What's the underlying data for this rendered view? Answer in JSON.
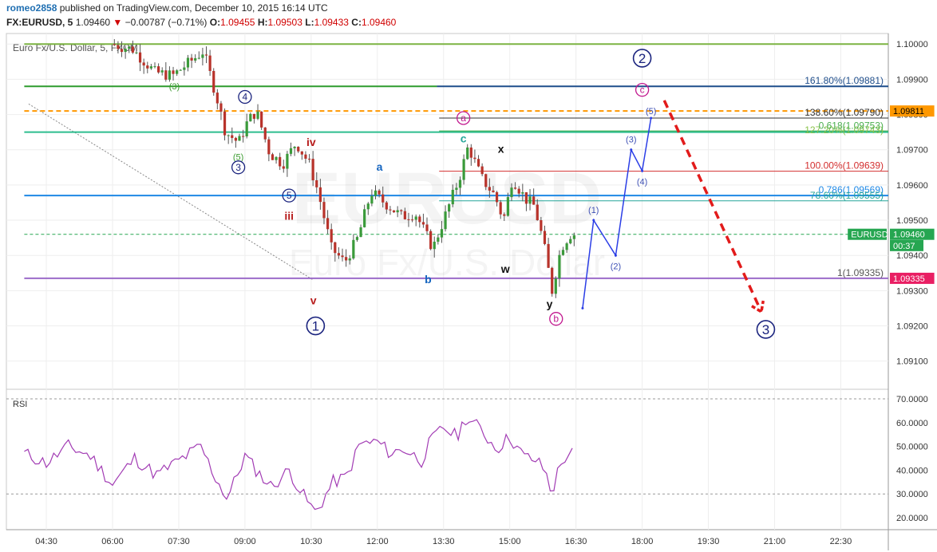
{
  "header": {
    "author": "romeo2858",
    "published_text": "published on TradingView.com, December 10, 2015 16:14 UTC",
    "symbol": "FX:EURUSD, 5",
    "last": "1.09460",
    "arrow": "▼",
    "change": "−0.00787 (−0.71%)",
    "o_label": "O:",
    "o": "1.09455",
    "h_label": "H:",
    "h": "1.09503",
    "l_label": "L:",
    "l": "1.09433",
    "c_label": "C:",
    "c": "1.09460"
  },
  "chart_data": {
    "type": "candlestick",
    "title": "Euro Fx/U.S. Dollar, 5, FXCM",
    "watermark_symbol": "EURUSD",
    "watermark_name": "Euro Fx/U.S. Dollar",
    "price_axis": {
      "ylim": [
        1.0902,
        1.1003
      ],
      "ticks": [
        "1.10000",
        "1.09900",
        "1.09800",
        "1.09700",
        "1.09600",
        "1.09500",
        "1.09400",
        "1.09300",
        "1.09200",
        "1.09100"
      ]
    },
    "time_axis": {
      "ticks": [
        {
          "t": 4.5,
          "label": "04:30"
        },
        {
          "t": 6,
          "label": "06:00"
        },
        {
          "t": 7.5,
          "label": "07:30"
        },
        {
          "t": 9,
          "label": "09:00"
        },
        {
          "t": 10.5,
          "label": "10:30"
        },
        {
          "t": 12,
          "label": "12:00"
        },
        {
          "t": 13.5,
          "label": "13:30"
        },
        {
          "t": 15,
          "label": "15:00"
        },
        {
          "t": 16.5,
          "label": "16:30"
        },
        {
          "t": 18,
          "label": "18:00"
        },
        {
          "t": 19.5,
          "label": "19:30"
        },
        {
          "t": 21,
          "label": "21:00"
        },
        {
          "t": 22.5,
          "label": "22:30"
        }
      ]
    },
    "price_anchors": [
      [
        6.0,
        1.1
      ],
      [
        6.5,
        1.09985
      ],
      [
        7.0,
        1.0992
      ],
      [
        7.4,
        1.0991
      ],
      [
        7.8,
        1.0995
      ],
      [
        8.1,
        1.0998
      ],
      [
        8.4,
        1.0985
      ],
      [
        8.6,
        1.0975
      ],
      [
        8.9,
        1.0972
      ],
      [
        9.1,
        1.0978
      ],
      [
        9.3,
        1.0981
      ],
      [
        9.6,
        1.0969
      ],
      [
        9.9,
        1.0966
      ],
      [
        10.2,
        1.0972
      ],
      [
        10.5,
        1.0966
      ],
      [
        10.7,
        1.0958
      ],
      [
        11.0,
        1.0942
      ],
      [
        11.3,
        1.0938
      ],
      [
        11.6,
        1.0945
      ],
      [
        11.9,
        1.0958
      ],
      [
        12.2,
        1.0955
      ],
      [
        12.6,
        1.0951
      ],
      [
        12.9,
        1.0952
      ],
      [
        13.1,
        1.0947
      ],
      [
        13.3,
        1.0942
      ],
      [
        13.6,
        1.0952
      ],
      [
        13.9,
        1.0962
      ],
      [
        14.1,
        1.0971
      ],
      [
        14.4,
        1.0962
      ],
      [
        14.7,
        1.0957
      ],
      [
        14.9,
        1.095
      ],
      [
        15.1,
        1.0962
      ],
      [
        15.4,
        1.0956
      ],
      [
        15.6,
        1.0954
      ],
      [
        15.8,
        1.0944
      ],
      [
        16.0,
        1.093
      ],
      [
        16.2,
        1.0942
      ],
      [
        16.4,
        1.0946
      ]
    ],
    "candles_to": 16.45,
    "horizontal_lines": [
      {
        "price": 1.1,
        "color": "#7cb342",
        "width": 2,
        "dash": "",
        "from": 4.0
      },
      {
        "price": 1.0988,
        "color": "#2e9c2e",
        "width": 2,
        "dash": "",
        "from": 4.0,
        "to": 13.35
      },
      {
        "price": 1.0988,
        "color": "#1f4e8c",
        "width": 2,
        "dash": "",
        "from": 13.35
      },
      {
        "price": 1.0981,
        "color": "#ff9800",
        "width": 2,
        "dash": "6,4",
        "from": 4.0
      },
      {
        "price": 1.0979,
        "color": "#333333",
        "width": 1,
        "dash": "",
        "from": 13.4
      },
      {
        "price": 1.09753,
        "color": "#4caf50",
        "width": 1.5,
        "dash": "",
        "from": 13.4
      },
      {
        "price": 1.0975,
        "color": "#2dbd8f",
        "width": 2,
        "dash": "",
        "from": 4.0
      },
      {
        "price": 1.09639,
        "color": "#d32f2f",
        "width": 1,
        "dash": "",
        "from": 13.4
      },
      {
        "price": 1.0957,
        "color": "#1e88e5",
        "width": 2,
        "dash": "",
        "from": 4.0
      },
      {
        "price": 1.09555,
        "color": "#26a69a",
        "width": 1,
        "dash": "",
        "from": 13.4
      },
      {
        "price": 1.0946,
        "color": "#26a651",
        "width": 1,
        "dash": "4,3",
        "from": 4.0
      },
      {
        "price": 1.09335,
        "color": "#9c6bc9",
        "width": 2,
        "dash": "",
        "from": 4.0
      }
    ],
    "fib_labels": [
      {
        "text": "161.80%(1.09881)",
        "price": 1.0988,
        "color": "#1f4e8c"
      },
      {
        "text": "138.60%(1.09790)",
        "price": 1.0979,
        "color": "#333333"
      },
      {
        "text": "127.20%(1.09743)",
        "price": 1.0974,
        "color": "#8bc34a"
      },
      {
        "text": "0.618(1.09753)",
        "price": 1.09753,
        "color": "#4caf50"
      },
      {
        "text": "100.00%(1.09639)",
        "price": 1.09639,
        "color": "#d32f2f"
      },
      {
        "text": "0.786(1.09569)",
        "price": 1.0957,
        "color": "#1e88e5"
      },
      {
        "text": "78.60%(1.09555)",
        "price": 1.09555,
        "color": "#26a69a"
      },
      {
        "text": "1(1.09335)",
        "price": 1.09335,
        "color": "#555555"
      }
    ],
    "price_tags": [
      {
        "text": "1.09811",
        "price": 1.0981,
        "bg": "#ff9800",
        "fg": "#000000"
      },
      {
        "text": "EURUSD",
        "price": 1.0946,
        "bg": "#26a651",
        "fg": "#ffffff",
        "left": true
      },
      {
        "text": "1.09460",
        "price": 1.0946,
        "bg": "#26a651",
        "fg": "#ffffff"
      },
      {
        "text": "00:37",
        "price": 1.09428,
        "bg": "#26a651",
        "fg": "#ffffff"
      },
      {
        "text": "1.09335",
        "price": 1.09335,
        "bg": "#e91e63",
        "fg": "#ffffff"
      }
    ],
    "trendline": [
      [
        4.1,
        1.0983
      ],
      [
        10.55,
        1.0933
      ]
    ],
    "projection": [
      [
        16.65,
        1.0925
      ],
      [
        16.9,
        1.095
      ],
      [
        17.4,
        1.094
      ],
      [
        17.75,
        1.097
      ],
      [
        18.0,
        1.0964
      ],
      [
        18.2,
        1.0979
      ]
    ],
    "forecast_arrow": [
      [
        18.5,
        1.0984
      ],
      [
        20.7,
        1.0924
      ]
    ],
    "wave_labels": [
      {
        "text": "(3)",
        "t": 7.4,
        "price": 1.0988,
        "color": "#3b9b2f",
        "shape": "none"
      },
      {
        "text": "4",
        "t": 9.0,
        "price": 1.0985,
        "color": "#1a237e",
        "shape": "circle"
      },
      {
        "text": "(5)",
        "t": 8.85,
        "price": 1.0968,
        "color": "#3b9b2f",
        "shape": "none"
      },
      {
        "text": "3",
        "t": 8.85,
        "price": 1.0965,
        "color": "#1a237e",
        "shape": "circle"
      },
      {
        "text": "iv",
        "t": 10.5,
        "price": 1.0972,
        "color": "#b71c1c",
        "shape": "none",
        "bold": true
      },
      {
        "text": "5",
        "t": 10.0,
        "price": 1.0957,
        "color": "#1a237e",
        "shape": "circle"
      },
      {
        "text": "iii",
        "t": 10.0,
        "price": 1.0951,
        "color": "#b71c1c",
        "shape": "none",
        "bold": true
      },
      {
        "text": "v",
        "t": 10.55,
        "price": 1.0927,
        "color": "#b71c1c",
        "shape": "none",
        "bold": true
      },
      {
        "text": "1",
        "t": 10.6,
        "price": 1.092,
        "color": "#1a237e",
        "shape": "circle-big"
      },
      {
        "text": "a",
        "t": 12.05,
        "price": 1.0965,
        "color": "#1565c0",
        "shape": "none",
        "bold": true
      },
      {
        "text": "b",
        "t": 13.15,
        "price": 1.0933,
        "color": "#1565c0",
        "shape": "none",
        "bold": true
      },
      {
        "text": "a",
        "t": 13.95,
        "price": 1.0979,
        "color": "#c2188f",
        "shape": "circle"
      },
      {
        "text": "c",
        "t": 13.95,
        "price": 1.0973,
        "color": "#26a69a",
        "shape": "none",
        "bold": true
      },
      {
        "text": "x",
        "t": 14.8,
        "price": 1.097,
        "color": "#111111",
        "shape": "none",
        "bold": true
      },
      {
        "text": "w",
        "t": 14.9,
        "price": 1.0936,
        "color": "#111111",
        "shape": "none",
        "bold": true
      },
      {
        "text": "y",
        "t": 15.9,
        "price": 1.0926,
        "color": "#111111",
        "shape": "none",
        "bold": true
      },
      {
        "text": "b",
        "t": 16.05,
        "price": 1.0922,
        "color": "#c2188f",
        "shape": "circle"
      },
      {
        "text": "2",
        "t": 18.0,
        "price": 1.0996,
        "color": "#1a237e",
        "shape": "circle-big"
      },
      {
        "text": "c",
        "t": 18.0,
        "price": 1.0987,
        "color": "#c2188f",
        "shape": "circle"
      },
      {
        "text": "(5)",
        "t": 18.2,
        "price": 1.0981,
        "color": "#3f51b5",
        "shape": "none"
      },
      {
        "text": "(1)",
        "t": 16.9,
        "price": 1.0953,
        "color": "#3f51b5",
        "shape": "none"
      },
      {
        "text": "(2)",
        "t": 17.4,
        "price": 1.0937,
        "color": "#3f51b5",
        "shape": "none"
      },
      {
        "text": "(3)",
        "t": 17.75,
        "price": 1.0973,
        "color": "#3f51b5",
        "shape": "none"
      },
      {
        "text": "(4)",
        "t": 18.0,
        "price": 1.0961,
        "color": "#3f51b5",
        "shape": "none"
      },
      {
        "text": "3",
        "t": 20.8,
        "price": 1.0919,
        "color": "#1a237e",
        "shape": "circle-big"
      }
    ],
    "rsi": {
      "label": "RSI",
      "ylim": [
        17,
        72
      ],
      "ticks": [
        "70.0000",
        "60.0000",
        "50.0000",
        "40.0000",
        "30.0000",
        "20.0000"
      ],
      "guides": [
        70,
        30
      ],
      "color": "#a23cb4",
      "anchors": [
        [
          4.0,
          47
        ],
        [
          4.5,
          43
        ],
        [
          5.0,
          50
        ],
        [
          5.5,
          46
        ],
        [
          6.0,
          34
        ],
        [
          6.5,
          45
        ],
        [
          7.0,
          38
        ],
        [
          7.5,
          44
        ],
        [
          8.0,
          50
        ],
        [
          8.3,
          38
        ],
        [
          8.6,
          28
        ],
        [
          9.0,
          46
        ],
        [
          9.3,
          39
        ],
        [
          9.6,
          33
        ],
        [
          10.0,
          40
        ],
        [
          10.3,
          30
        ],
        [
          10.6,
          22
        ],
        [
          11.0,
          35
        ],
        [
          11.3,
          37
        ],
        [
          11.6,
          51
        ],
        [
          12.0,
          52
        ],
        [
          12.3,
          47
        ],
        [
          12.6,
          49
        ],
        [
          13.0,
          44
        ],
        [
          13.2,
          52
        ],
        [
          13.5,
          58
        ],
        [
          13.8,
          54
        ],
        [
          14.0,
          62
        ],
        [
          14.3,
          58
        ],
        [
          14.7,
          49
        ],
        [
          15.0,
          54
        ],
        [
          15.3,
          46
        ],
        [
          15.6,
          44
        ],
        [
          15.8,
          40
        ],
        [
          15.95,
          30
        ],
        [
          16.1,
          40
        ],
        [
          16.3,
          47
        ],
        [
          16.45,
          47
        ]
      ]
    }
  }
}
